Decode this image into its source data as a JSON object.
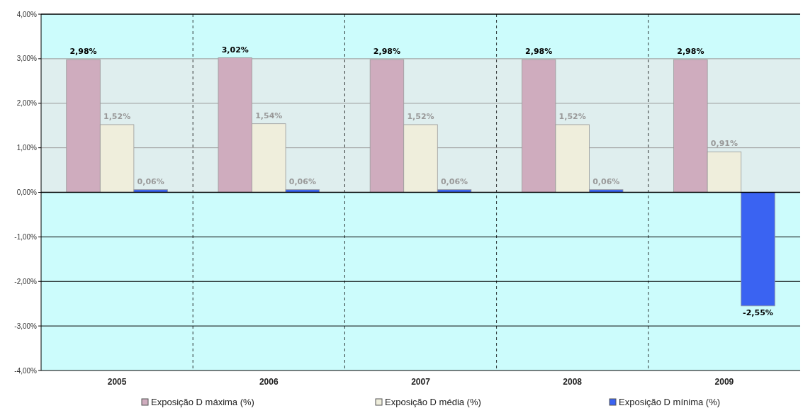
{
  "chart_data": {
    "type": "bar",
    "categories": [
      "2005",
      "2006",
      "2007",
      "2008",
      "2009"
    ],
    "series": [
      {
        "name": "Exposição D máxima (%)",
        "color": "#cfacbe",
        "values": [
          2.98,
          3.02,
          2.98,
          2.98,
          2.98
        ],
        "value_labels": [
          "2,98%",
          "3,02%",
          "2,98%",
          "2,98%",
          "2,98%"
        ]
      },
      {
        "name": "Exposição D média (%)",
        "color": "#efeedc",
        "values": [
          1.52,
          1.54,
          1.52,
          1.52,
          0.91
        ],
        "value_labels": [
          "1,52%",
          "1,54%",
          "1,52%",
          "1,52%",
          "0,91%"
        ]
      },
      {
        "name": "Exposição D mínima (%)",
        "color": "#3a63f2",
        "values": [
          0.06,
          0.06,
          0.06,
          0.06,
          -2.55
        ],
        "value_labels": [
          "0,06%",
          "0,06%",
          "0,06%",
          "0,06%",
          "-2,55%"
        ]
      }
    ],
    "ylim": [
      -4,
      4
    ],
    "yticks": [
      {
        "value": -4,
        "label": "-4,00%"
      },
      {
        "value": -3,
        "label": "-3,00%"
      },
      {
        "value": -2,
        "label": "-2,00%"
      },
      {
        "value": -1,
        "label": "-1,00%"
      },
      {
        "value": 0,
        "label": "0,00%"
      },
      {
        "value": 1,
        "label": "1,00%"
      },
      {
        "value": 2,
        "label": "2,00%"
      },
      {
        "value": 3,
        "label": "3,00%"
      },
      {
        "value": 4,
        "label": "4,00%"
      }
    ],
    "bands": [
      {
        "axis": "y",
        "from": 0,
        "to": 3,
        "color": "#dfeeee"
      }
    ],
    "grid": "y",
    "legend": "bottom"
  }
}
